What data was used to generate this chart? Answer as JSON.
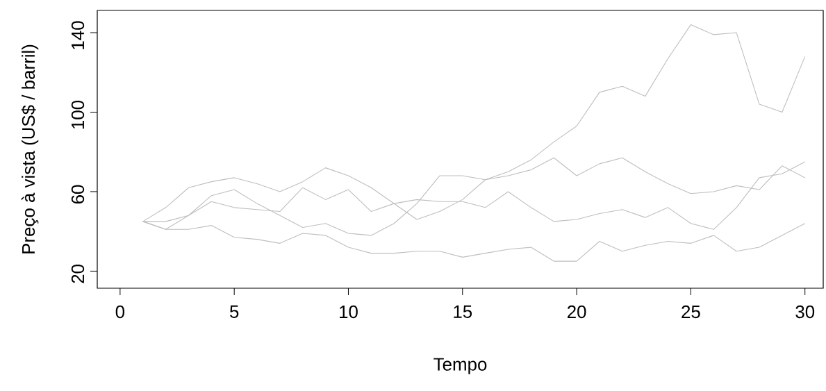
{
  "chart_data": {
    "type": "line",
    "xlabel": "Tempo",
    "ylabel": "Preço à vista (US$ / barril)",
    "x": [
      1,
      2,
      3,
      4,
      5,
      6,
      7,
      8,
      9,
      10,
      11,
      12,
      13,
      14,
      15,
      16,
      17,
      18,
      19,
      20,
      21,
      22,
      23,
      24,
      25,
      26,
      27,
      28,
      29,
      30
    ],
    "series": [
      {
        "color": "#bebebe",
        "values": [
          45,
          52,
          62,
          65,
          67,
          64,
          60,
          65,
          72,
          68,
          62,
          54,
          46,
          50,
          56,
          66,
          70,
          76,
          85,
          93,
          110,
          113,
          108,
          127,
          144,
          139,
          140,
          104,
          100,
          128
        ]
      },
      {
        "color": "#bebebe",
        "values": [
          45,
          41,
          48,
          58,
          61,
          54,
          48,
          42,
          44,
          39,
          38,
          44,
          54,
          68,
          68,
          66,
          68,
          71,
          77,
          68,
          74,
          77,
          70,
          64,
          59,
          60,
          63,
          61,
          73,
          67
        ]
      },
      {
        "color": "#bebebe",
        "values": [
          45,
          45,
          48,
          55,
          52,
          51,
          50,
          62,
          56,
          61,
          50,
          54,
          56,
          55,
          55,
          52,
          60,
          52,
          45,
          46,
          49,
          51,
          47,
          52,
          44,
          41,
          52,
          67,
          69,
          75
        ]
      },
      {
        "color": "#bebebe",
        "values": [
          45,
          41,
          41,
          43,
          37,
          36,
          34,
          39,
          38,
          32,
          29,
          29,
          30,
          30,
          27,
          29,
          31,
          32,
          25,
          25,
          35,
          30,
          33,
          35,
          34,
          38,
          30,
          32,
          38,
          44
        ]
      }
    ],
    "xlim": [
      -1,
      30.8
    ],
    "ylim": [
      11.4,
      151.2
    ],
    "xticks": [
      0,
      5,
      10,
      15,
      20,
      25,
      30
    ],
    "yticks": [
      20,
      60,
      100,
      140
    ],
    "marker": "none",
    "line_style": "solid"
  }
}
